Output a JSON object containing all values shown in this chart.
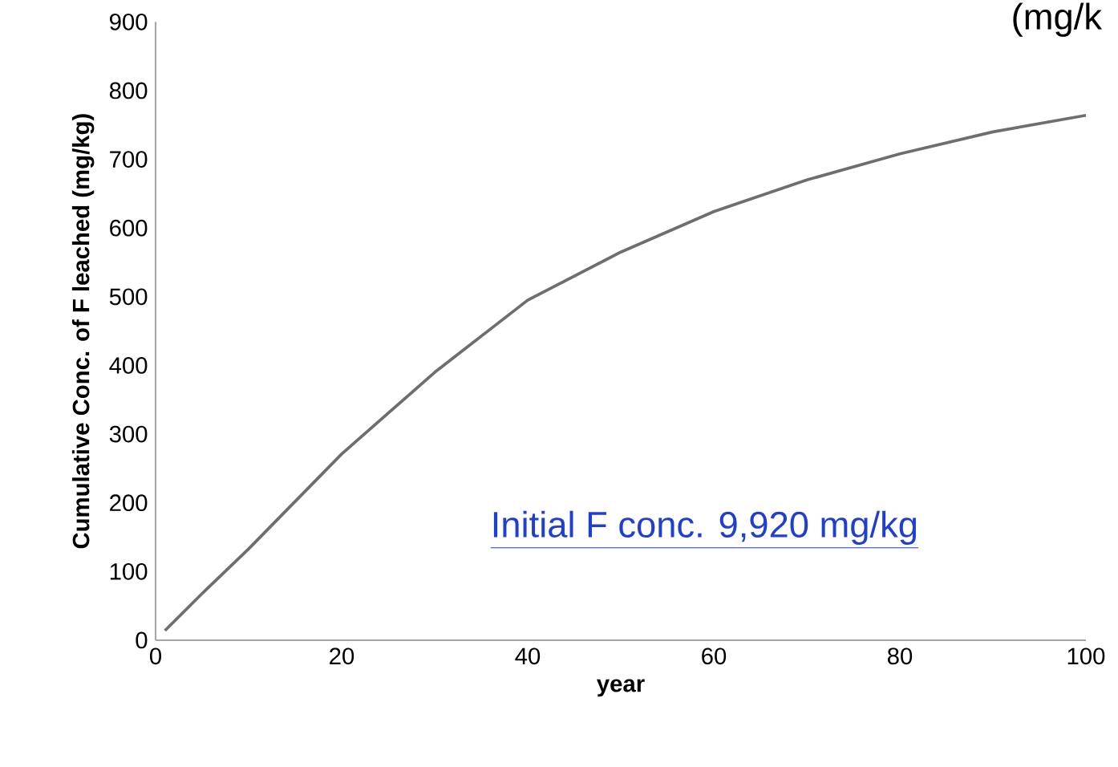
{
  "chart_data": {
    "type": "line",
    "xlabel": "year",
    "ylabel": "Cumulative Conc. of F leached (mg/kg)",
    "x": [
      1,
      5,
      10,
      20,
      30,
      40,
      50,
      60,
      70,
      80,
      90,
      100
    ],
    "series": [
      {
        "color": "#6e6e6e",
        "values": [
          14,
          68,
          133,
          271,
          390,
          495,
          565,
          624,
          670,
          708,
          740,
          764
        ]
      }
    ],
    "xlim": [
      0,
      100
    ],
    "ylim": [
      0,
      900
    ],
    "xticks": [
      0,
      20,
      40,
      60,
      80,
      100
    ],
    "yticks": [
      0,
      100,
      200,
      300,
      400,
      500,
      600,
      700,
      800,
      900
    ],
    "grid": false,
    "marker": "none",
    "line_style": "solid",
    "annotations": [
      "Initial F conc. 9,920 mg/kg",
      "(mg/k"
    ]
  }
}
